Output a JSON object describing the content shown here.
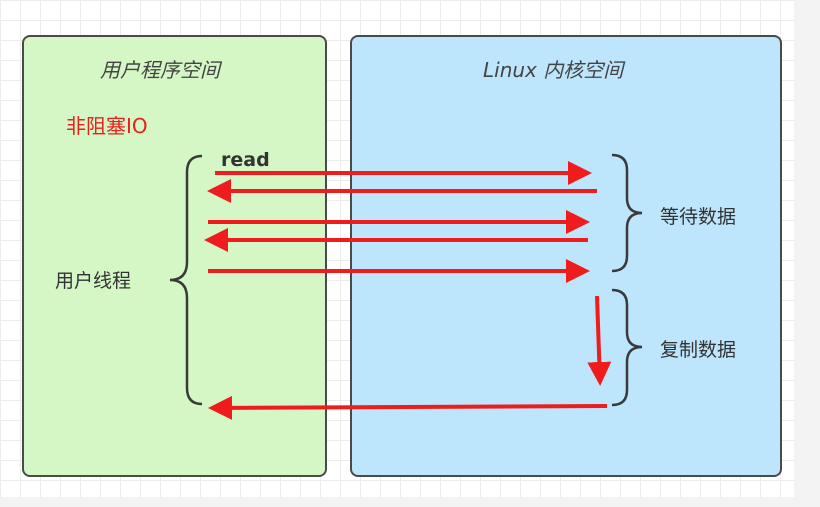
{
  "user_space": {
    "title": "用户程序空间",
    "nonblocking_label": "非阻塞IO",
    "read_label": "read",
    "thread_label": "用户线程"
  },
  "kernel_space": {
    "title": "Linux 内核空间",
    "wait_label": "等待数据",
    "copy_label": "复制数据"
  },
  "colors": {
    "user_fill": "#d4f7c5",
    "kernel_fill": "#bde5fb",
    "arrow": "#ee1c1c",
    "label_red": "#e8201e",
    "border": "#4a4a4a"
  }
}
